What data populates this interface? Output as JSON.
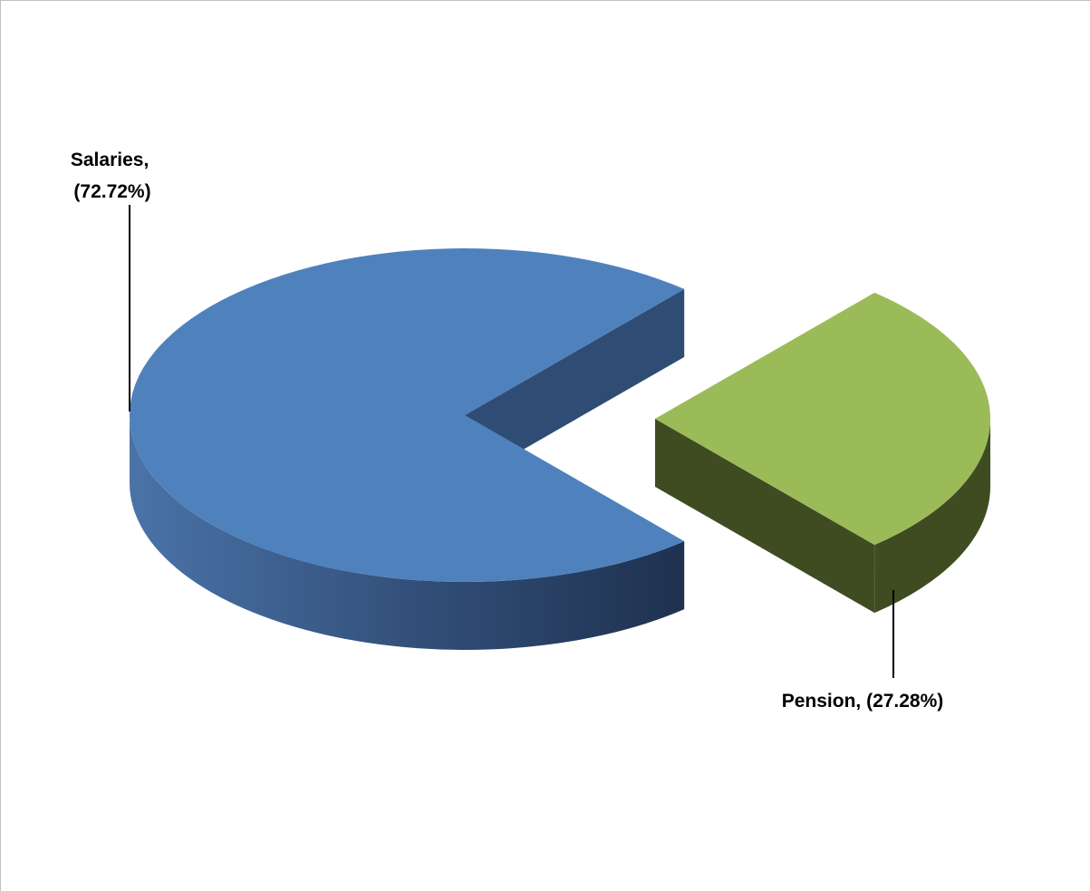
{
  "chart_data": {
    "type": "pie",
    "style": "3d-exploded",
    "categories": [
      "Salaries",
      "Pension"
    ],
    "values": [
      72.72,
      27.28
    ],
    "value_unit": "%",
    "labels": [
      {
        "line1": "Salaries,",
        "line2": "(72.72%)"
      },
      {
        "line1": "Pension, (27.28%)",
        "line2": ""
      }
    ],
    "colors": {
      "Salaries": {
        "top": "#4f81bd",
        "side_light": "#4a73a8",
        "side_dark": "#1f3250",
        "cut": "#2f4d74"
      },
      "Pension": {
        "top": "#9bbb59",
        "side": "#3f4c21",
        "cut": "#3f4c21"
      }
    },
    "legend": "none",
    "title": ""
  }
}
